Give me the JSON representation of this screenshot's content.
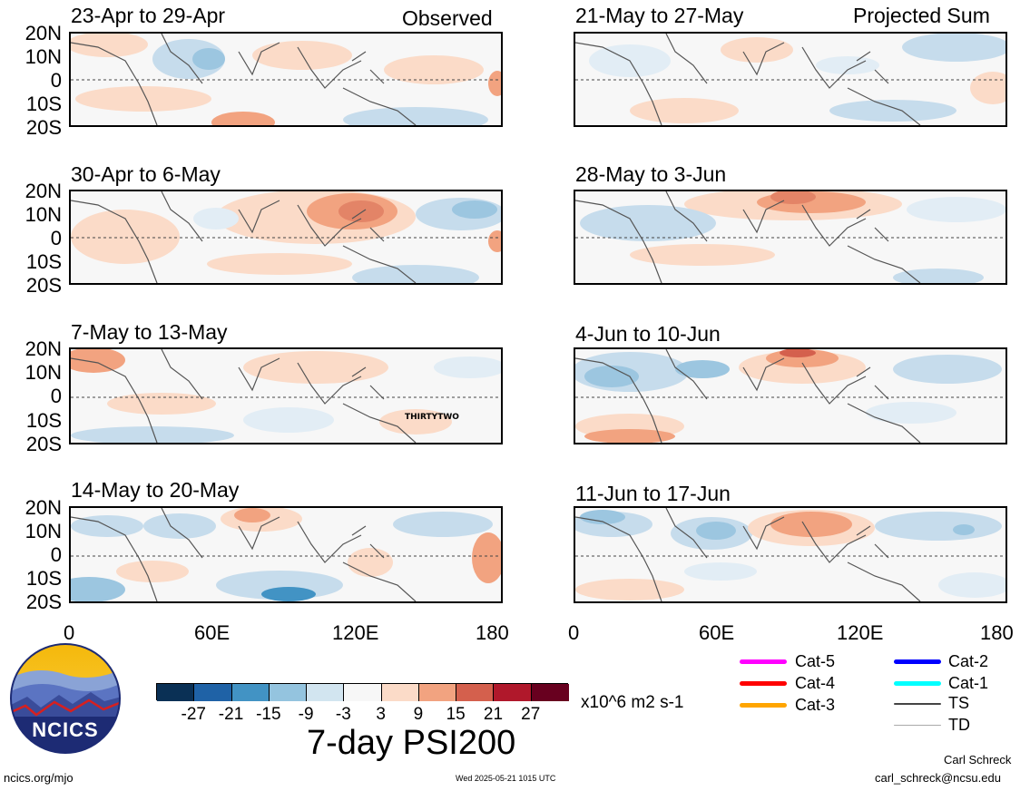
{
  "left_column": {
    "header_right": "Observed",
    "panels": [
      {
        "date_range": "23-Apr to 29-Apr"
      },
      {
        "date_range": "30-Apr to 6-May"
      },
      {
        "date_range": "7-May to 13-May",
        "storm_label": "THIRTYTWO"
      },
      {
        "date_range": "14-May to 20-May"
      }
    ]
  },
  "right_column": {
    "header_right": "Projected Sum",
    "panels": [
      {
        "date_range": "21-May to 27-May"
      },
      {
        "date_range": "28-May to 3-Jun"
      },
      {
        "date_range": "4-Jun to 10-Jun"
      },
      {
        "date_range": "11-Jun to 17-Jun"
      }
    ]
  },
  "lat_labels": [
    "20N",
    "10N",
    "0",
    "10S",
    "20S"
  ],
  "lon_labels": [
    "0",
    "60E",
    "120E",
    "180"
  ],
  "colorbar": {
    "colors": [
      "#0a3055",
      "#1f62a6",
      "#4293c4",
      "#94c4df",
      "#d2e5f0",
      "#f7f7f7",
      "#fbdbc8",
      "#f2a380",
      "#d4604d",
      "#b0182b",
      "#68001f"
    ],
    "tick_labels": [
      "-27",
      "-21",
      "-15",
      "-9",
      "-3",
      "3",
      "9",
      "15",
      "21",
      "27"
    ],
    "units": "x10^6 m2 s-1",
    "title": "7-day PSI200"
  },
  "storm_legend": [
    {
      "label": "Cat-5",
      "color": "#ff00ff"
    },
    {
      "label": "Cat-4",
      "color": "#ff0000"
    },
    {
      "label": "Cat-3",
      "color": "#ffa500"
    },
    {
      "label": "Cat-2",
      "color": "#0000ff"
    },
    {
      "label": "Cat-1",
      "color": "#00ffff"
    },
    {
      "label": "TS",
      "color": "#444444"
    },
    {
      "label": "TD",
      "color": "#aaaaaa"
    }
  ],
  "logo": {
    "text": "NCICS"
  },
  "footer": {
    "url": "ncics.org/mjo",
    "timestamp": "Wed 2025-05-21 1015 UTC",
    "author": "Carl Schreck",
    "email": "carl_schreck@ncsu.edu"
  }
}
